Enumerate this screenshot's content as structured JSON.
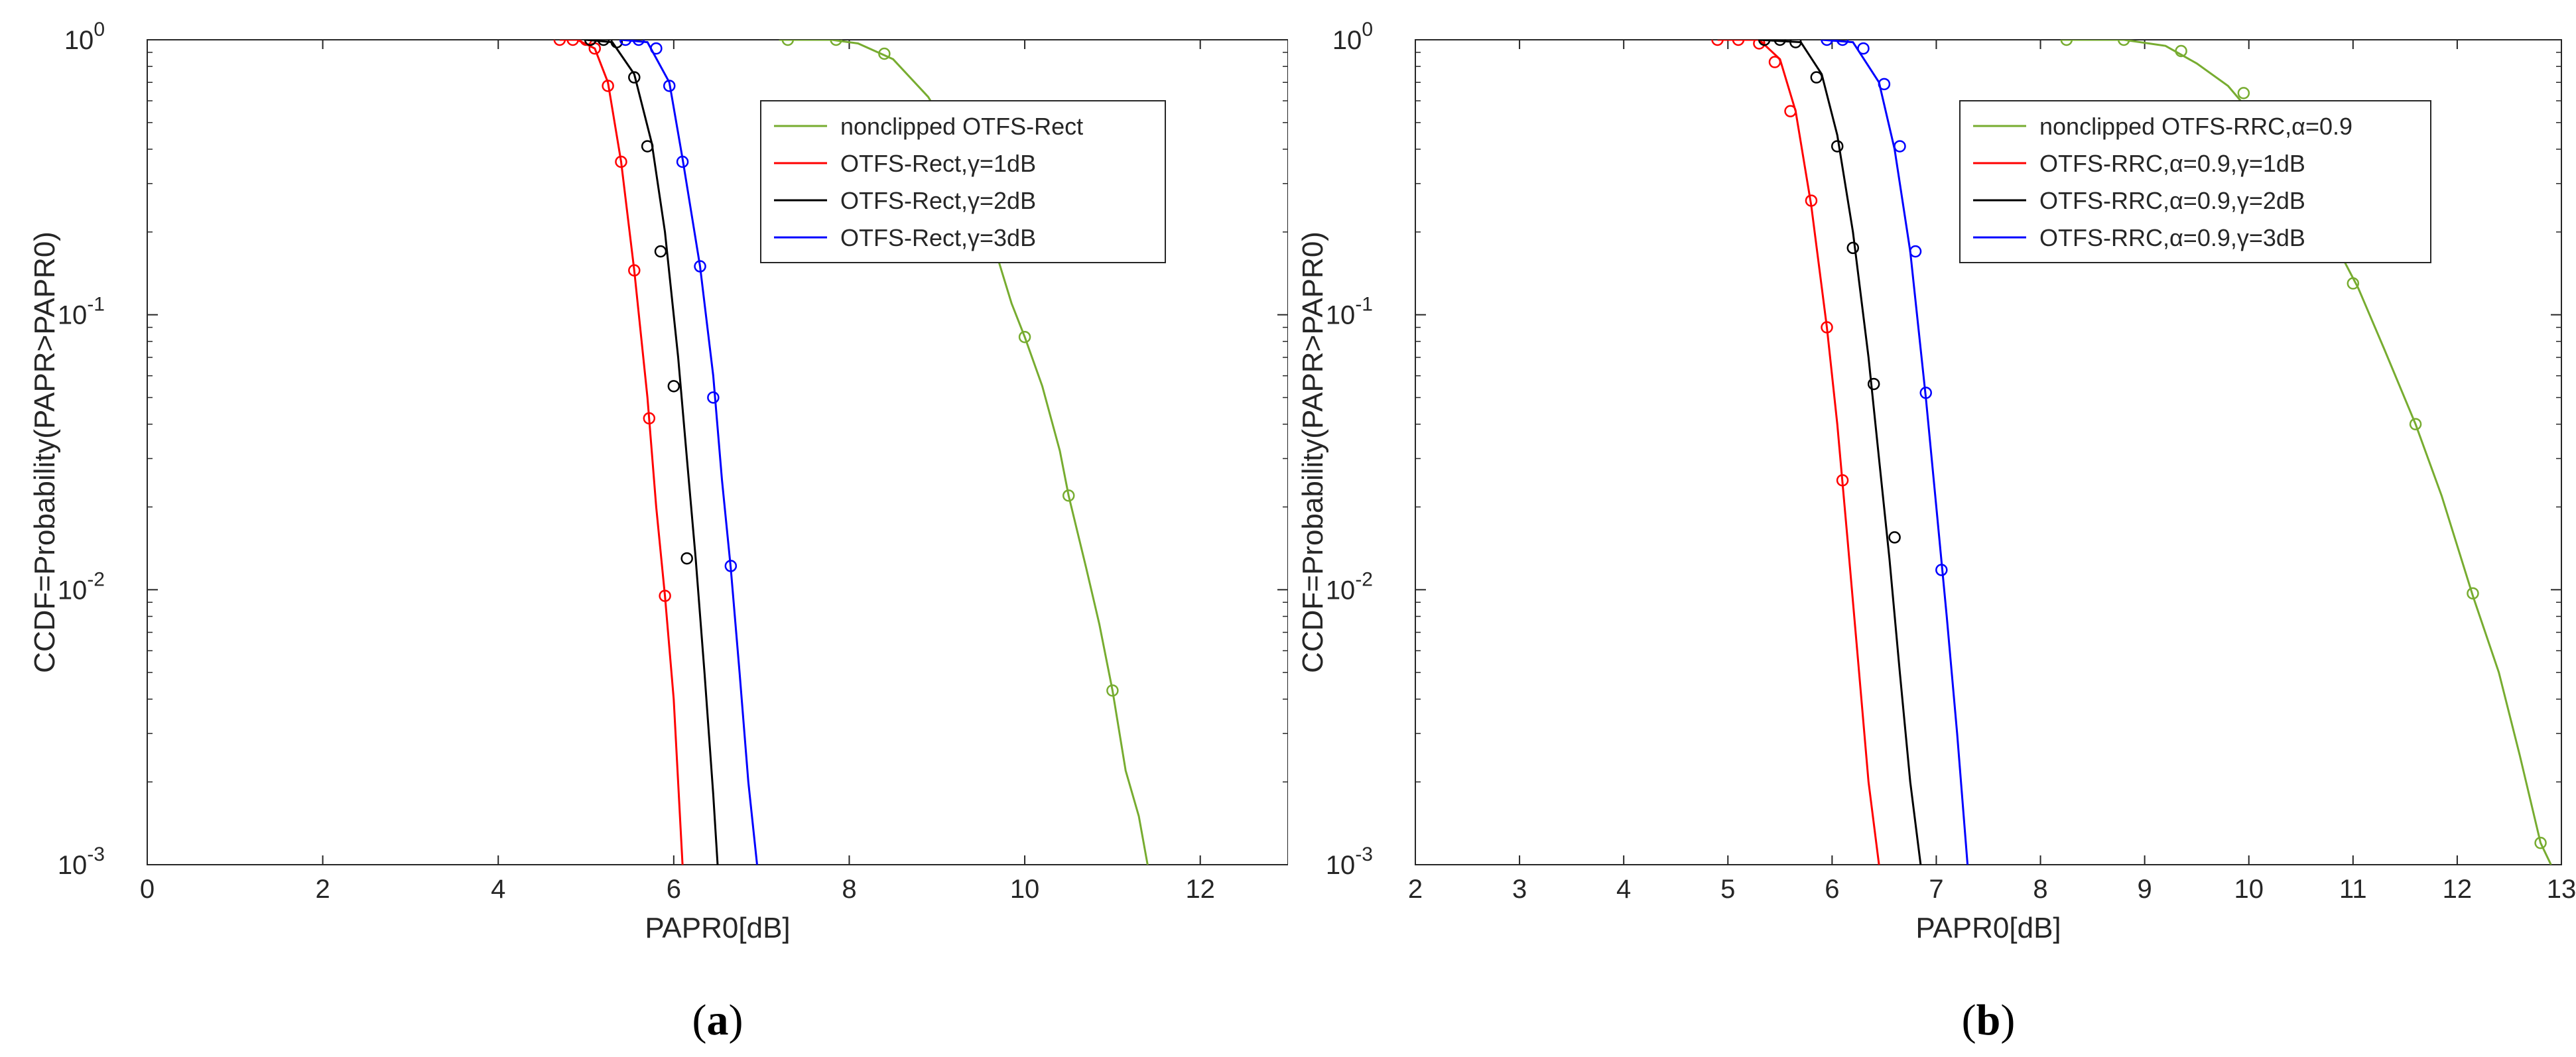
{
  "chart_data": [
    {
      "type": "line",
      "caption_letter": "a",
      "xlabel": "PAPR0[dB]",
      "ylabel": "CCDF=Probability(PAPR>PAPR0)",
      "xlim": [
        0,
        13
      ],
      "ylim": [
        0.001,
        1
      ],
      "yscale": "log",
      "x_ticks": [
        0,
        2,
        4,
        6,
        8,
        10,
        12
      ],
      "y_ticks": [
        {
          "value": 1,
          "base": "10",
          "exp": "0"
        },
        {
          "value": 0.1,
          "base": "10",
          "exp": "-1"
        },
        {
          "value": 0.01,
          "base": "10",
          "exp": "-2"
        },
        {
          "value": 0.001,
          "base": "10",
          "exp": "-3"
        }
      ],
      "grid": false,
      "legend_position": "top-right",
      "series": [
        {
          "name": "nonclipped OTFS-Rect",
          "color": "#77ac30",
          "line": [
            [
              7.2,
              1
            ],
            [
              7.8,
              1
            ],
            [
              8.1,
              0.97
            ],
            [
              8.5,
              0.85
            ],
            [
              8.9,
              0.62
            ],
            [
              9.3,
              0.38
            ],
            [
              9.6,
              0.2
            ],
            [
              9.85,
              0.11
            ],
            [
              10.0,
              0.083
            ],
            [
              10.2,
              0.055
            ],
            [
              10.4,
              0.032
            ],
            [
              10.5,
              0.022
            ],
            [
              10.7,
              0.012
            ],
            [
              10.85,
              0.0075
            ],
            [
              11.0,
              0.0043
            ],
            [
              11.15,
              0.0022
            ],
            [
              11.3,
              0.0015
            ],
            [
              11.4,
              0.001
            ]
          ],
          "markers": [
            [
              7.3,
              1
            ],
            [
              7.85,
              1
            ],
            [
              8.4,
              0.89
            ],
            [
              10.0,
              0.083
            ],
            [
              10.5,
              0.022
            ],
            [
              11.0,
              0.0043
            ]
          ]
        },
        {
          "name": "OTFS-Rect,γ=1dB",
          "color": "#ff0000",
          "line": [
            [
              4.7,
              1
            ],
            [
              4.9,
              1
            ],
            [
              5.1,
              0.93
            ],
            [
              5.25,
              0.7
            ],
            [
              5.4,
              0.36
            ],
            [
              5.55,
              0.145
            ],
            [
              5.7,
              0.05
            ],
            [
              5.8,
              0.02
            ],
            [
              5.9,
              0.0095
            ],
            [
              6.0,
              0.004
            ],
            [
              6.1,
              0.001
            ]
          ],
          "markers": [
            [
              4.7,
              1
            ],
            [
              4.85,
              1
            ],
            [
              5.0,
              1
            ],
            [
              5.1,
              0.93
            ],
            [
              5.25,
              0.68
            ],
            [
              5.4,
              0.36
            ],
            [
              5.55,
              0.145
            ],
            [
              5.72,
              0.042
            ],
            [
              5.9,
              0.0095
            ]
          ]
        },
        {
          "name": "OTFS-Rect,γ=2dB",
          "color": "#000000",
          "line": [
            [
              5.0,
              1
            ],
            [
              5.3,
              0.98
            ],
            [
              5.55,
              0.75
            ],
            [
              5.75,
              0.42
            ],
            [
              5.9,
              0.2
            ],
            [
              6.05,
              0.07
            ],
            [
              6.15,
              0.03
            ],
            [
              6.25,
              0.013
            ],
            [
              6.35,
              0.005
            ],
            [
              6.45,
              0.0018
            ],
            [
              6.5,
              0.001
            ]
          ],
          "markers": [
            [
              5.05,
              1
            ],
            [
              5.2,
              1
            ],
            [
              5.35,
              0.98
            ],
            [
              5.55,
              0.73
            ],
            [
              5.7,
              0.41
            ],
            [
              5.85,
              0.17
            ],
            [
              6.0,
              0.055
            ],
            [
              6.15,
              0.013
            ]
          ]
        },
        {
          "name": "OTFS-Rect,γ=3dB",
          "color": "#0000ff",
          "line": [
            [
              5.4,
              1
            ],
            [
              5.7,
              0.98
            ],
            [
              5.95,
              0.7
            ],
            [
              6.1,
              0.37
            ],
            [
              6.3,
              0.15
            ],
            [
              6.45,
              0.06
            ],
            [
              6.55,
              0.025
            ],
            [
              6.65,
              0.012
            ],
            [
              6.75,
              0.005
            ],
            [
              6.85,
              0.002
            ],
            [
              6.95,
              0.001
            ]
          ],
          "markers": [
            [
              5.45,
              1
            ],
            [
              5.6,
              1
            ],
            [
              5.8,
              0.93
            ],
            [
              5.95,
              0.68
            ],
            [
              6.1,
              0.36
            ],
            [
              6.3,
              0.15
            ],
            [
              6.45,
              0.05
            ],
            [
              6.65,
              0.0122
            ]
          ]
        }
      ]
    },
    {
      "type": "line",
      "caption_letter": "b",
      "xlabel": "PAPR0[dB]",
      "ylabel": "CCDF=Probability(PAPR>PAPR0)",
      "xlim": [
        2,
        13
      ],
      "ylim": [
        0.001,
        1
      ],
      "yscale": "log",
      "x_ticks": [
        2,
        3,
        4,
        5,
        6,
        7,
        8,
        9,
        10,
        11,
        12,
        13
      ],
      "y_ticks": [
        {
          "value": 1,
          "base": "10",
          "exp": "0"
        },
        {
          "value": 0.1,
          "base": "10",
          "exp": "-1"
        },
        {
          "value": 0.01,
          "base": "10",
          "exp": "-2"
        },
        {
          "value": 0.001,
          "base": "10",
          "exp": "-3"
        }
      ],
      "grid": false,
      "legend_position": "top-right",
      "series": [
        {
          "name": "nonclipped OTFS-RRC,α=0.9",
          "color": "#77ac30",
          "line": [
            [
              8.2,
              1
            ],
            [
              8.8,
              1
            ],
            [
              9.2,
              0.95
            ],
            [
              9.5,
              0.82
            ],
            [
              9.8,
              0.68
            ],
            [
              10.1,
              0.5
            ],
            [
              10.5,
              0.3
            ],
            [
              10.8,
              0.19
            ],
            [
              11.05,
              0.125
            ],
            [
              11.3,
              0.075
            ],
            [
              11.6,
              0.04
            ],
            [
              11.85,
              0.022
            ],
            [
              12.15,
              0.0095
            ],
            [
              12.4,
              0.005
            ],
            [
              12.6,
              0.0025
            ],
            [
              12.8,
              0.0012
            ],
            [
              12.9,
              0.001
            ]
          ],
          "markers": [
            [
              8.25,
              1
            ],
            [
              8.8,
              1
            ],
            [
              9.35,
              0.91
            ],
            [
              9.95,
              0.64
            ],
            [
              11.0,
              0.13
            ],
            [
              11.6,
              0.04
            ],
            [
              12.15,
              0.0097
            ],
            [
              12.8,
              0.0012
            ]
          ]
        },
        {
          "name": "OTFS-RRC,α=0.9,γ=1dB",
          "color": "#ff0000",
          "line": [
            [
              4.9,
              1
            ],
            [
              5.3,
              1
            ],
            [
              5.5,
              0.85
            ],
            [
              5.65,
              0.55
            ],
            [
              5.8,
              0.25
            ],
            [
              5.95,
              0.09
            ],
            [
              6.05,
              0.04
            ],
            [
              6.15,
              0.015
            ],
            [
              6.25,
              0.0055
            ],
            [
              6.35,
              0.002
            ],
            [
              6.45,
              0.001
            ]
          ],
          "markers": [
            [
              4.9,
              1
            ],
            [
              5.1,
              1
            ],
            [
              5.3,
              0.97
            ],
            [
              5.45,
              0.83
            ],
            [
              5.6,
              0.55
            ],
            [
              5.8,
              0.26
            ],
            [
              5.95,
              0.09
            ],
            [
              6.1,
              0.025
            ]
          ]
        },
        {
          "name": "OTFS-RRC,α=0.9,γ=2dB",
          "color": "#000000",
          "line": [
            [
              5.3,
              1
            ],
            [
              5.7,
              0.98
            ],
            [
              5.9,
              0.75
            ],
            [
              6.05,
              0.45
            ],
            [
              6.2,
              0.2
            ],
            [
              6.35,
              0.07
            ],
            [
              6.45,
              0.03
            ],
            [
              6.55,
              0.013
            ],
            [
              6.65,
              0.005
            ],
            [
              6.75,
              0.002
            ],
            [
              6.85,
              0.001
            ]
          ],
          "markers": [
            [
              5.35,
              1
            ],
            [
              5.5,
              1
            ],
            [
              5.65,
              0.98
            ],
            [
              5.85,
              0.73
            ],
            [
              6.05,
              0.41
            ],
            [
              6.2,
              0.175
            ],
            [
              6.4,
              0.056
            ],
            [
              6.6,
              0.0155
            ]
          ]
        },
        {
          "name": "OTFS-RRC,α=0.9,γ=3dB",
          "color": "#0000ff",
          "line": [
            [
              5.9,
              1
            ],
            [
              6.2,
              0.98
            ],
            [
              6.45,
              0.7
            ],
            [
              6.6,
              0.4
            ],
            [
              6.75,
              0.17
            ],
            [
              6.9,
              0.05
            ],
            [
              7.0,
              0.02
            ],
            [
              7.1,
              0.008
            ],
            [
              7.2,
              0.003
            ],
            [
              7.3,
              0.001
            ]
          ],
          "markers": [
            [
              5.95,
              1
            ],
            [
              6.1,
              1
            ],
            [
              6.3,
              0.93
            ],
            [
              6.5,
              0.69
            ],
            [
              6.65,
              0.41
            ],
            [
              6.8,
              0.17
            ],
            [
              6.9,
              0.052
            ],
            [
              7.05,
              0.0118
            ]
          ]
        }
      ]
    }
  ]
}
